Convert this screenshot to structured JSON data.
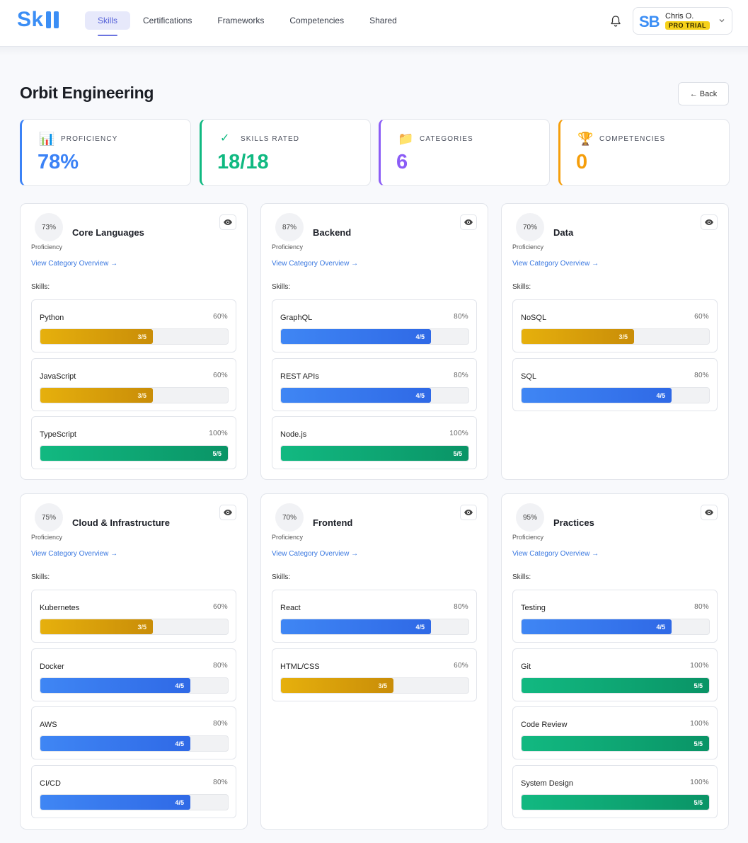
{
  "app": {
    "logo_text": "Sk",
    "nav_tabs": [
      {
        "label": "Skills",
        "active": true
      },
      {
        "label": "Certifications",
        "active": false
      },
      {
        "label": "Frameworks",
        "active": false
      },
      {
        "label": "Competencies",
        "active": false
      },
      {
        "label": "Shared",
        "active": false
      }
    ],
    "user": {
      "initials": "SB",
      "name": "Chris O.",
      "badge": "PRO TRIAL"
    }
  },
  "page": {
    "title": "Orbit Engineering",
    "back_label": "← Back"
  },
  "stats": [
    {
      "icon": "📊",
      "icon_name": "bar-chart-icon",
      "label": "PROFICIENCY",
      "value": "78%",
      "color": "#3b82f6"
    },
    {
      "icon": "✓",
      "icon_name": "check-icon",
      "label": "SKILLS RATED",
      "value": "18/18",
      "color": "#10b981"
    },
    {
      "icon": "📁",
      "icon_name": "folder-icon",
      "label": "CATEGORIES",
      "value": "6",
      "color": "#8b5cf6"
    },
    {
      "icon": "🏆",
      "icon_name": "trophy-icon",
      "label": "COMPETENCIES",
      "value": "0",
      "color": "#f59e0b"
    }
  ],
  "labels": {
    "proficiency": "Proficiency",
    "overview_link": "View Category Overview →",
    "skills_heading": "Skills:"
  },
  "categories": [
    {
      "name": "Core Languages",
      "pct": "73%",
      "skills": [
        {
          "name": "Python",
          "pct": "60%",
          "rating": "3/5",
          "level": 0.6,
          "tone": "amber"
        },
        {
          "name": "JavaScript",
          "pct": "60%",
          "rating": "3/5",
          "level": 0.6,
          "tone": "amber"
        },
        {
          "name": "TypeScript",
          "pct": "100%",
          "rating": "5/5",
          "level": 1.0,
          "tone": "green"
        }
      ]
    },
    {
      "name": "Backend",
      "pct": "87%",
      "skills": [
        {
          "name": "GraphQL",
          "pct": "80%",
          "rating": "4/5",
          "level": 0.8,
          "tone": "blue"
        },
        {
          "name": "REST APIs",
          "pct": "80%",
          "rating": "4/5",
          "level": 0.8,
          "tone": "blue"
        },
        {
          "name": "Node.js",
          "pct": "100%",
          "rating": "5/5",
          "level": 1.0,
          "tone": "green"
        }
      ]
    },
    {
      "name": "Data",
      "pct": "70%",
      "skills": [
        {
          "name": "NoSQL",
          "pct": "60%",
          "rating": "3/5",
          "level": 0.6,
          "tone": "amber"
        },
        {
          "name": "SQL",
          "pct": "80%",
          "rating": "4/5",
          "level": 0.8,
          "tone": "blue"
        }
      ]
    },
    {
      "name": "Cloud & Infrastructure",
      "pct": "75%",
      "skills": [
        {
          "name": "Kubernetes",
          "pct": "60%",
          "rating": "3/5",
          "level": 0.6,
          "tone": "amber"
        },
        {
          "name": "Docker",
          "pct": "80%",
          "rating": "4/5",
          "level": 0.8,
          "tone": "blue"
        },
        {
          "name": "AWS",
          "pct": "80%",
          "rating": "4/5",
          "level": 0.8,
          "tone": "blue"
        },
        {
          "name": "CI/CD",
          "pct": "80%",
          "rating": "4/5",
          "level": 0.8,
          "tone": "blue"
        }
      ]
    },
    {
      "name": "Frontend",
      "pct": "70%",
      "skills": [
        {
          "name": "React",
          "pct": "80%",
          "rating": "4/5",
          "level": 0.8,
          "tone": "blue"
        },
        {
          "name": "HTML/CSS",
          "pct": "60%",
          "rating": "3/5",
          "level": 0.6,
          "tone": "amber"
        }
      ]
    },
    {
      "name": "Practices",
      "pct": "95%",
      "skills": [
        {
          "name": "Testing",
          "pct": "80%",
          "rating": "4/5",
          "level": 0.8,
          "tone": "blue"
        },
        {
          "name": "Git",
          "pct": "100%",
          "rating": "5/5",
          "level": 1.0,
          "tone": "green"
        },
        {
          "name": "Code Review",
          "pct": "100%",
          "rating": "5/5",
          "level": 1.0,
          "tone": "green"
        },
        {
          "name": "System Design",
          "pct": "100%",
          "rating": "5/5",
          "level": 1.0,
          "tone": "green"
        }
      ]
    }
  ]
}
